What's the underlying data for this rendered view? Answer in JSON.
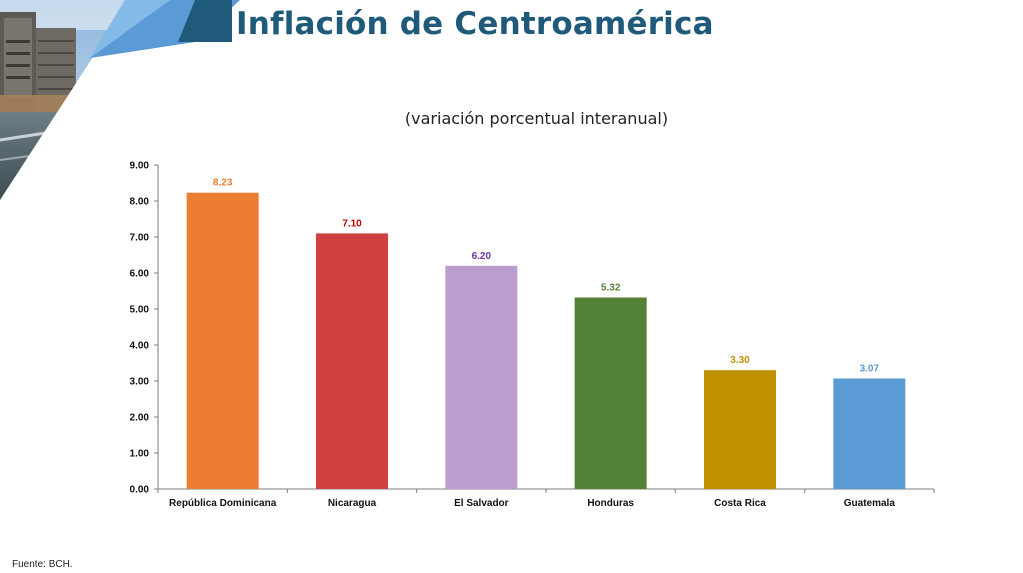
{
  "header": {
    "title": "Inflación de Centroamérica",
    "accent_color": "#1f5a7a"
  },
  "footer": {
    "source": "Fuente: BCH."
  },
  "chart_data": {
    "type": "bar",
    "subtitle": "(variación porcentual interanual)",
    "categories": [
      "República Dominicana",
      "Nicaragua",
      "El Salvador",
      "Honduras",
      "Costa Rica",
      "Guatemala"
    ],
    "values": [
      8.23,
      7.1,
      6.2,
      5.32,
      3.3,
      3.07
    ],
    "value_labels": [
      "8.23",
      "7.10",
      "6.20",
      "5.32",
      "3.30",
      "3.07"
    ],
    "colors": [
      "#ed7d31",
      "#d04040",
      "#bb9dd0",
      "#538135",
      "#bf9000",
      "#5b9bd5"
    ],
    "label_colors": [
      "#ed7d31",
      "#c00000",
      "#7030a0",
      "#538135",
      "#bf9000",
      "#5b9bd5"
    ],
    "ylim": [
      0,
      9
    ],
    "yticks": [
      "0.00",
      "1.00",
      "2.00",
      "3.00",
      "4.00",
      "5.00",
      "6.00",
      "7.00",
      "8.00",
      "9.00"
    ],
    "grid": false,
    "legend": "none"
  }
}
